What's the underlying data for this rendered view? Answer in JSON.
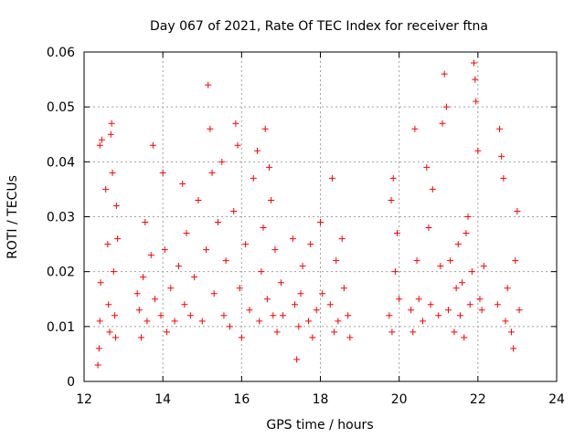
{
  "chart_data": {
    "type": "scatter",
    "title": "Day 067 of 2021, Rate Of TEC Index for receiver ftna",
    "xlabel": "GPS time / hours",
    "ylabel": "ROTI / TECUs",
    "xlim": [
      12,
      24
    ],
    "ylim": [
      0,
      0.06
    ],
    "x_ticks": [
      12,
      14,
      16,
      18,
      20,
      22,
      24
    ],
    "y_ticks": [
      0,
      0.01,
      0.02,
      0.03,
      0.04,
      0.05,
      0.06
    ],
    "x_tick_labels": [
      "12",
      "14",
      "16",
      "18",
      "20",
      "22",
      "24"
    ],
    "y_tick_labels": [
      "0",
      "0.01",
      "0.02",
      "0.03",
      "0.04",
      "0.05",
      "0.06"
    ],
    "grid": true,
    "marker": "+",
    "color": "#ff0000",
    "series": [
      {
        "points": [
          [
            12.35,
            0.003
          ],
          [
            12.38,
            0.006
          ],
          [
            12.4,
            0.011
          ],
          [
            12.42,
            0.018
          ],
          [
            12.4,
            0.043
          ],
          [
            12.45,
            0.044
          ],
          [
            12.55,
            0.035
          ],
          [
            12.6,
            0.025
          ],
          [
            12.62,
            0.014
          ],
          [
            12.65,
            0.009
          ],
          [
            12.68,
            0.045
          ],
          [
            12.7,
            0.047
          ],
          [
            12.72,
            0.038
          ],
          [
            12.75,
            0.02
          ],
          [
            12.78,
            0.012
          ],
          [
            12.8,
            0.008
          ],
          [
            12.82,
            0.032
          ],
          [
            12.85,
            0.026
          ],
          [
            13.35,
            0.016
          ],
          [
            13.4,
            0.013
          ],
          [
            13.45,
            0.008
          ],
          [
            13.5,
            0.019
          ],
          [
            13.55,
            0.029
          ],
          [
            13.6,
            0.011
          ],
          [
            13.7,
            0.023
          ],
          [
            13.75,
            0.043
          ],
          [
            13.8,
            0.015
          ],
          [
            13.95,
            0.012
          ],
          [
            14.0,
            0.038
          ],
          [
            14.05,
            0.024
          ],
          [
            14.1,
            0.009
          ],
          [
            14.2,
            0.017
          ],
          [
            14.3,
            0.011
          ],
          [
            14.4,
            0.021
          ],
          [
            14.5,
            0.036
          ],
          [
            14.55,
            0.014
          ],
          [
            14.6,
            0.027
          ],
          [
            14.7,
            0.012
          ],
          [
            14.8,
            0.019
          ],
          [
            14.9,
            0.033
          ],
          [
            15.0,
            0.011
          ],
          [
            15.1,
            0.024
          ],
          [
            15.15,
            0.054
          ],
          [
            15.2,
            0.046
          ],
          [
            15.25,
            0.038
          ],
          [
            15.3,
            0.016
          ],
          [
            15.4,
            0.029
          ],
          [
            15.5,
            0.04
          ],
          [
            15.55,
            0.012
          ],
          [
            15.6,
            0.022
          ],
          [
            15.7,
            0.01
          ],
          [
            15.8,
            0.031
          ],
          [
            15.85,
            0.047
          ],
          [
            15.9,
            0.043
          ],
          [
            15.95,
            0.017
          ],
          [
            16.0,
            0.008
          ],
          [
            16.1,
            0.025
          ],
          [
            16.2,
            0.013
          ],
          [
            16.3,
            0.037
          ],
          [
            16.4,
            0.042
          ],
          [
            16.45,
            0.011
          ],
          [
            16.5,
            0.02
          ],
          [
            16.55,
            0.028
          ],
          [
            16.6,
            0.046
          ],
          [
            16.65,
            0.015
          ],
          [
            16.7,
            0.039
          ],
          [
            16.75,
            0.033
          ],
          [
            16.8,
            0.012
          ],
          [
            16.85,
            0.024
          ],
          [
            16.9,
            0.009
          ],
          [
            17.0,
            0.018
          ],
          [
            17.05,
            0.012
          ],
          [
            17.3,
            0.026
          ],
          [
            17.35,
            0.014
          ],
          [
            17.4,
            0.004
          ],
          [
            17.45,
            0.01
          ],
          [
            17.5,
            0.016
          ],
          [
            17.55,
            0.021
          ],
          [
            17.7,
            0.011
          ],
          [
            17.75,
            0.025
          ],
          [
            17.8,
            0.008
          ],
          [
            17.9,
            0.013
          ],
          [
            18.0,
            0.029
          ],
          [
            18.05,
            0.016
          ],
          [
            18.25,
            0.014
          ],
          [
            18.3,
            0.037
          ],
          [
            18.35,
            0.009
          ],
          [
            18.4,
            0.022
          ],
          [
            18.45,
            0.011
          ],
          [
            18.55,
            0.026
          ],
          [
            18.6,
            0.017
          ],
          [
            18.7,
            0.012
          ],
          [
            18.75,
            0.008
          ],
          [
            19.75,
            0.012
          ],
          [
            19.8,
            0.033
          ],
          [
            19.85,
            0.037
          ],
          [
            19.9,
            0.02
          ],
          [
            19.95,
            0.027
          ],
          [
            20.0,
            0.015
          ],
          [
            19.82,
            0.009
          ],
          [
            20.3,
            0.013
          ],
          [
            20.35,
            0.009
          ],
          [
            20.4,
            0.046
          ],
          [
            20.45,
            0.022
          ],
          [
            20.5,
            0.015
          ],
          [
            20.6,
            0.011
          ],
          [
            20.7,
            0.039
          ],
          [
            20.75,
            0.028
          ],
          [
            20.8,
            0.014
          ],
          [
            20.85,
            0.035
          ],
          [
            21.0,
            0.012
          ],
          [
            21.05,
            0.021
          ],
          [
            21.1,
            0.047
          ],
          [
            21.15,
            0.056
          ],
          [
            21.2,
            0.05
          ],
          [
            21.25,
            0.013
          ],
          [
            21.3,
            0.022
          ],
          [
            21.4,
            0.009
          ],
          [
            21.45,
            0.017
          ],
          [
            21.5,
            0.025
          ],
          [
            21.55,
            0.012
          ],
          [
            21.6,
            0.018
          ],
          [
            21.65,
            0.008
          ],
          [
            21.7,
            0.027
          ],
          [
            21.75,
            0.03
          ],
          [
            21.8,
            0.014
          ],
          [
            21.85,
            0.02
          ],
          [
            21.9,
            0.058
          ],
          [
            21.93,
            0.055
          ],
          [
            21.95,
            0.051
          ],
          [
            22.0,
            0.042
          ],
          [
            22.05,
            0.015
          ],
          [
            22.1,
            0.013
          ],
          [
            22.15,
            0.021
          ],
          [
            22.5,
            0.014
          ],
          [
            22.55,
            0.046
          ],
          [
            22.6,
            0.041
          ],
          [
            22.65,
            0.037
          ],
          [
            22.7,
            0.011
          ],
          [
            22.75,
            0.017
          ],
          [
            22.85,
            0.009
          ],
          [
            22.9,
            0.006
          ],
          [
            22.95,
            0.022
          ],
          [
            23.0,
            0.031
          ],
          [
            23.05,
            0.013
          ]
        ]
      }
    ]
  }
}
